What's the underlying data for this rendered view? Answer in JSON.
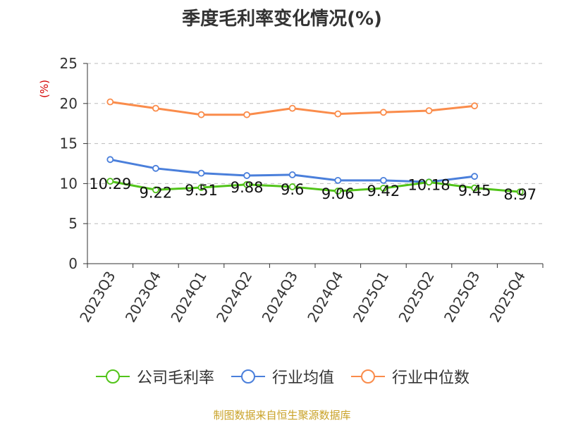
{
  "chart_data": {
    "type": "line",
    "title": "季度毛利率变化情况(%)",
    "ylabel": "(%)",
    "categories": [
      "2023Q3",
      "2023Q4",
      "2024Q1",
      "2024Q2",
      "2024Q3",
      "2024Q4",
      "2025Q1",
      "2025Q2",
      "2025Q3",
      "2025Q4"
    ],
    "ylim": [
      0,
      25
    ],
    "yticks": [
      0,
      5,
      10,
      15,
      20,
      25
    ],
    "grid": true,
    "legend_position": "bottom",
    "series": [
      {
        "name": "公司毛利率",
        "color": "#52c41a",
        "values": [
          10.29,
          9.22,
          9.51,
          9.88,
          9.6,
          9.06,
          9.42,
          10.18,
          9.45,
          8.97
        ],
        "labels": [
          "10.29",
          "9.22",
          "9.51",
          "9.88",
          "9.6",
          "9.06",
          "9.42",
          "10.18",
          "9.45",
          "8.97"
        ]
      },
      {
        "name": "行业均值",
        "color": "#4a7fdb",
        "values": [
          13.0,
          11.9,
          11.3,
          11.0,
          11.1,
          10.4,
          10.4,
          10.2,
          10.9,
          null
        ]
      },
      {
        "name": "行业中位数",
        "color": "#fa8c4b",
        "values": [
          20.2,
          19.4,
          18.6,
          18.6,
          19.4,
          18.7,
          18.9,
          19.1,
          19.7,
          null
        ]
      }
    ]
  },
  "source_text": "制图数据来自恒生聚源数据库"
}
